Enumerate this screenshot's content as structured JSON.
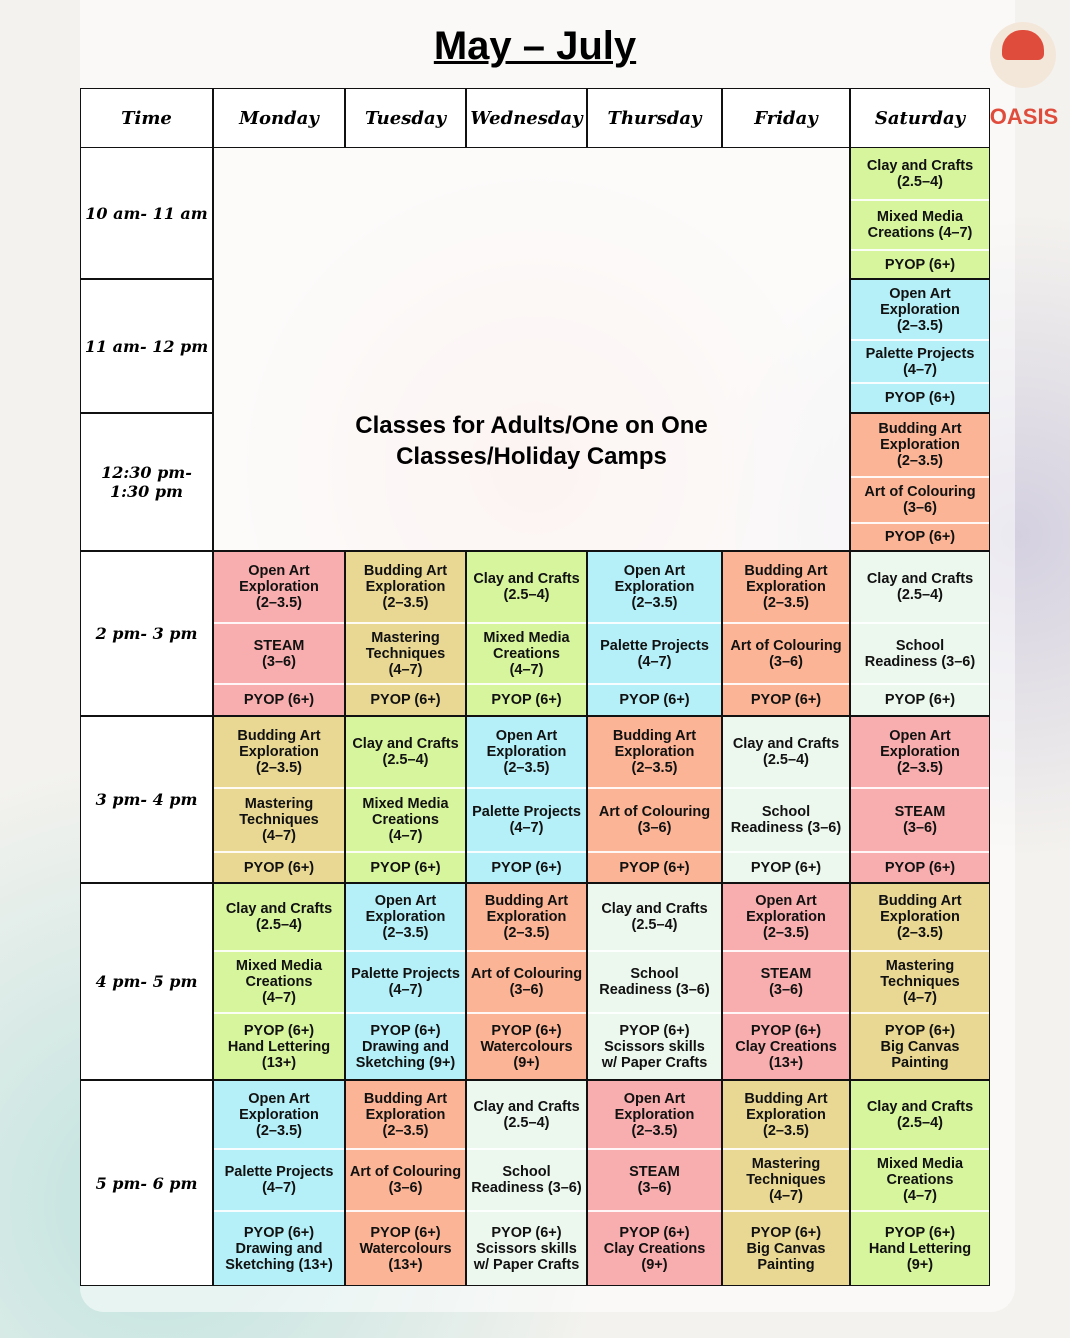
{
  "header": {
    "title": "May – July",
    "logo": "OASIS"
  },
  "table": {
    "columns": [
      "Time",
      "Monday",
      "Tuesday",
      "Wednesday",
      "Thursday",
      "Friday",
      "Saturday"
    ],
    "morning_block": "Classes for Adults/One on One\nClasses/Holiday Camps",
    "morning_rows": [
      {
        "time": "10 am- 11 am",
        "saturday": {
          "color": "#d6f59c",
          "classes": [
            "Clay and Crafts\n(2.5–4)",
            "Mixed Media\nCreations (4–7)",
            "PYOP (6+)"
          ]
        }
      },
      {
        "time": "11 am- 12 pm",
        "saturday": {
          "color": "#b5eff7",
          "classes": [
            "Open Art\nExploration\n(2–3.5)",
            "Palette Projects\n(4–7)",
            "PYOP (6+)"
          ]
        }
      },
      {
        "time": "12:30 pm-\n1:30 pm",
        "saturday": {
          "color": "#fbb596",
          "classes": [
            "Budding Art\nExploration\n(2–3.5)",
            "Art of Colouring\n(3–6)",
            "PYOP (6+)"
          ]
        }
      }
    ],
    "rows": [
      {
        "time": "2 pm- 3 pm",
        "days": [
          {
            "color": "#f8aeae",
            "classes": [
              "Open Art\nExploration\n(2–3.5)",
              "STEAM\n(3–6)",
              "PYOP (6+)"
            ]
          },
          {
            "color": "#e9d893",
            "classes": [
              "Budding Art\nExploration\n(2–3.5)",
              "Mastering\nTechniques\n(4–7)",
              "PYOP (6+)"
            ]
          },
          {
            "color": "#d6f59c",
            "classes": [
              "Clay and Crafts\n(2.5–4)",
              "Mixed Media\nCreations\n(4–7)",
              "PYOP (6+)"
            ]
          },
          {
            "color": "#b5eff7",
            "classes": [
              "Open Art\nExploration\n(2–3.5)",
              "Palette Projects\n(4–7)",
              "PYOP (6+)"
            ]
          },
          {
            "color": "#fbb596",
            "classes": [
              "Budding Art\nExploration\n(2–3.5)",
              "Art of Colouring\n(3–6)",
              "PYOP (6+)"
            ]
          },
          {
            "color": "#ecf7ee",
            "classes": [
              "Clay and Crafts\n(2.5–4)",
              "School\nReadiness (3–6)",
              "PYOP (6+)"
            ]
          }
        ]
      },
      {
        "time": "3 pm- 4 pm",
        "days": [
          {
            "color": "#e9d893",
            "classes": [
              "Budding Art\nExploration\n(2–3.5)",
              "Mastering\nTechniques\n(4–7)",
              "PYOP (6+)"
            ]
          },
          {
            "color": "#d6f59c",
            "classes": [
              "Clay and Crafts\n(2.5–4)",
              "Mixed Media\nCreations\n(4–7)",
              "PYOP (6+)"
            ]
          },
          {
            "color": "#b5eff7",
            "classes": [
              "Open Art\nExploration\n(2–3.5)",
              "Palette Projects\n(4–7)",
              "PYOP (6+)"
            ]
          },
          {
            "color": "#fbb596",
            "classes": [
              "Budding Art\nExploration\n(2–3.5)",
              "Art of Colouring\n(3–6)",
              "PYOP (6+)"
            ]
          },
          {
            "color": "#ecf7ee",
            "classes": [
              "Clay and Crafts\n(2.5–4)",
              "School\nReadiness (3–6)",
              "PYOP (6+)"
            ]
          },
          {
            "color": "#f8aeae",
            "classes": [
              "Open Art\nExploration\n(2–3.5)",
              "STEAM\n(3–6)",
              "PYOP (6+)"
            ]
          }
        ]
      },
      {
        "time": "4 pm- 5 pm",
        "days": [
          {
            "color": "#d6f59c",
            "classes": [
              "Clay and Crafts\n(2.5–4)",
              "Mixed Media\nCreations\n(4–7)",
              "PYOP (6+)\nHand Lettering\n(13+)"
            ]
          },
          {
            "color": "#b5eff7",
            "classes": [
              "Open Art\nExploration\n(2–3.5)",
              "Palette Projects\n(4–7)",
              "PYOP (6+)\nDrawing and\nSketching (9+)"
            ]
          },
          {
            "color": "#fbb596",
            "classes": [
              "Budding Art\nExploration\n(2–3.5)",
              "Art of Colouring\n(3–6)",
              "PYOP (6+)\nWatercolours\n(9+)"
            ]
          },
          {
            "color": "#ecf7ee",
            "classes": [
              "Clay and Crafts\n(2.5–4)",
              "School\nReadiness (3–6)",
              "PYOP (6+)\nScissors skills\nw/ Paper Crafts"
            ]
          },
          {
            "color": "#f8aeae",
            "classes": [
              "Open Art\nExploration\n(2–3.5)",
              "STEAM\n(3–6)",
              "PYOP (6+)\nClay Creations\n(13+)"
            ]
          },
          {
            "color": "#e9d893",
            "classes": [
              "Budding Art\nExploration\n(2–3.5)",
              "Mastering\nTechniques\n(4–7)",
              "PYOP (6+)\nBig Canvas\nPainting"
            ]
          }
        ]
      },
      {
        "time": "5 pm- 6 pm",
        "days": [
          {
            "color": "#b5eff7",
            "classes": [
              "Open Art\nExploration\n(2–3.5)",
              "Palette Projects\n(4–7)",
              "PYOP (6+)\nDrawing and\nSketching (13+)"
            ]
          },
          {
            "color": "#fbb596",
            "classes": [
              "Budding Art\nExploration\n(2–3.5)",
              "Art of Colouring\n(3–6)",
              "PYOP (6+)\nWatercolours\n(13+)"
            ]
          },
          {
            "color": "#ecf7ee",
            "classes": [
              "Clay and Crafts\n(2.5–4)",
              "School\nReadiness (3–6)",
              "PYOP (6+)\nScissors skills\nw/ Paper Crafts"
            ]
          },
          {
            "color": "#f8aeae",
            "classes": [
              "Open Art\nExploration\n(2–3.5)",
              "STEAM\n(3–6)",
              "PYOP (6+)\nClay Creations\n(9+)"
            ]
          },
          {
            "color": "#e9d893",
            "classes": [
              "Budding Art\nExploration\n(2–3.5)",
              "Mastering\nTechniques\n(4–7)",
              "PYOP (6+)\nBig Canvas\nPainting"
            ]
          },
          {
            "color": "#d6f59c",
            "classes": [
              "Clay and Crafts\n(2.5–4)",
              "Mixed Media\nCreations\n(4–7)",
              "PYOP (6+)\nHand Lettering\n(9+)"
            ]
          }
        ]
      }
    ]
  }
}
